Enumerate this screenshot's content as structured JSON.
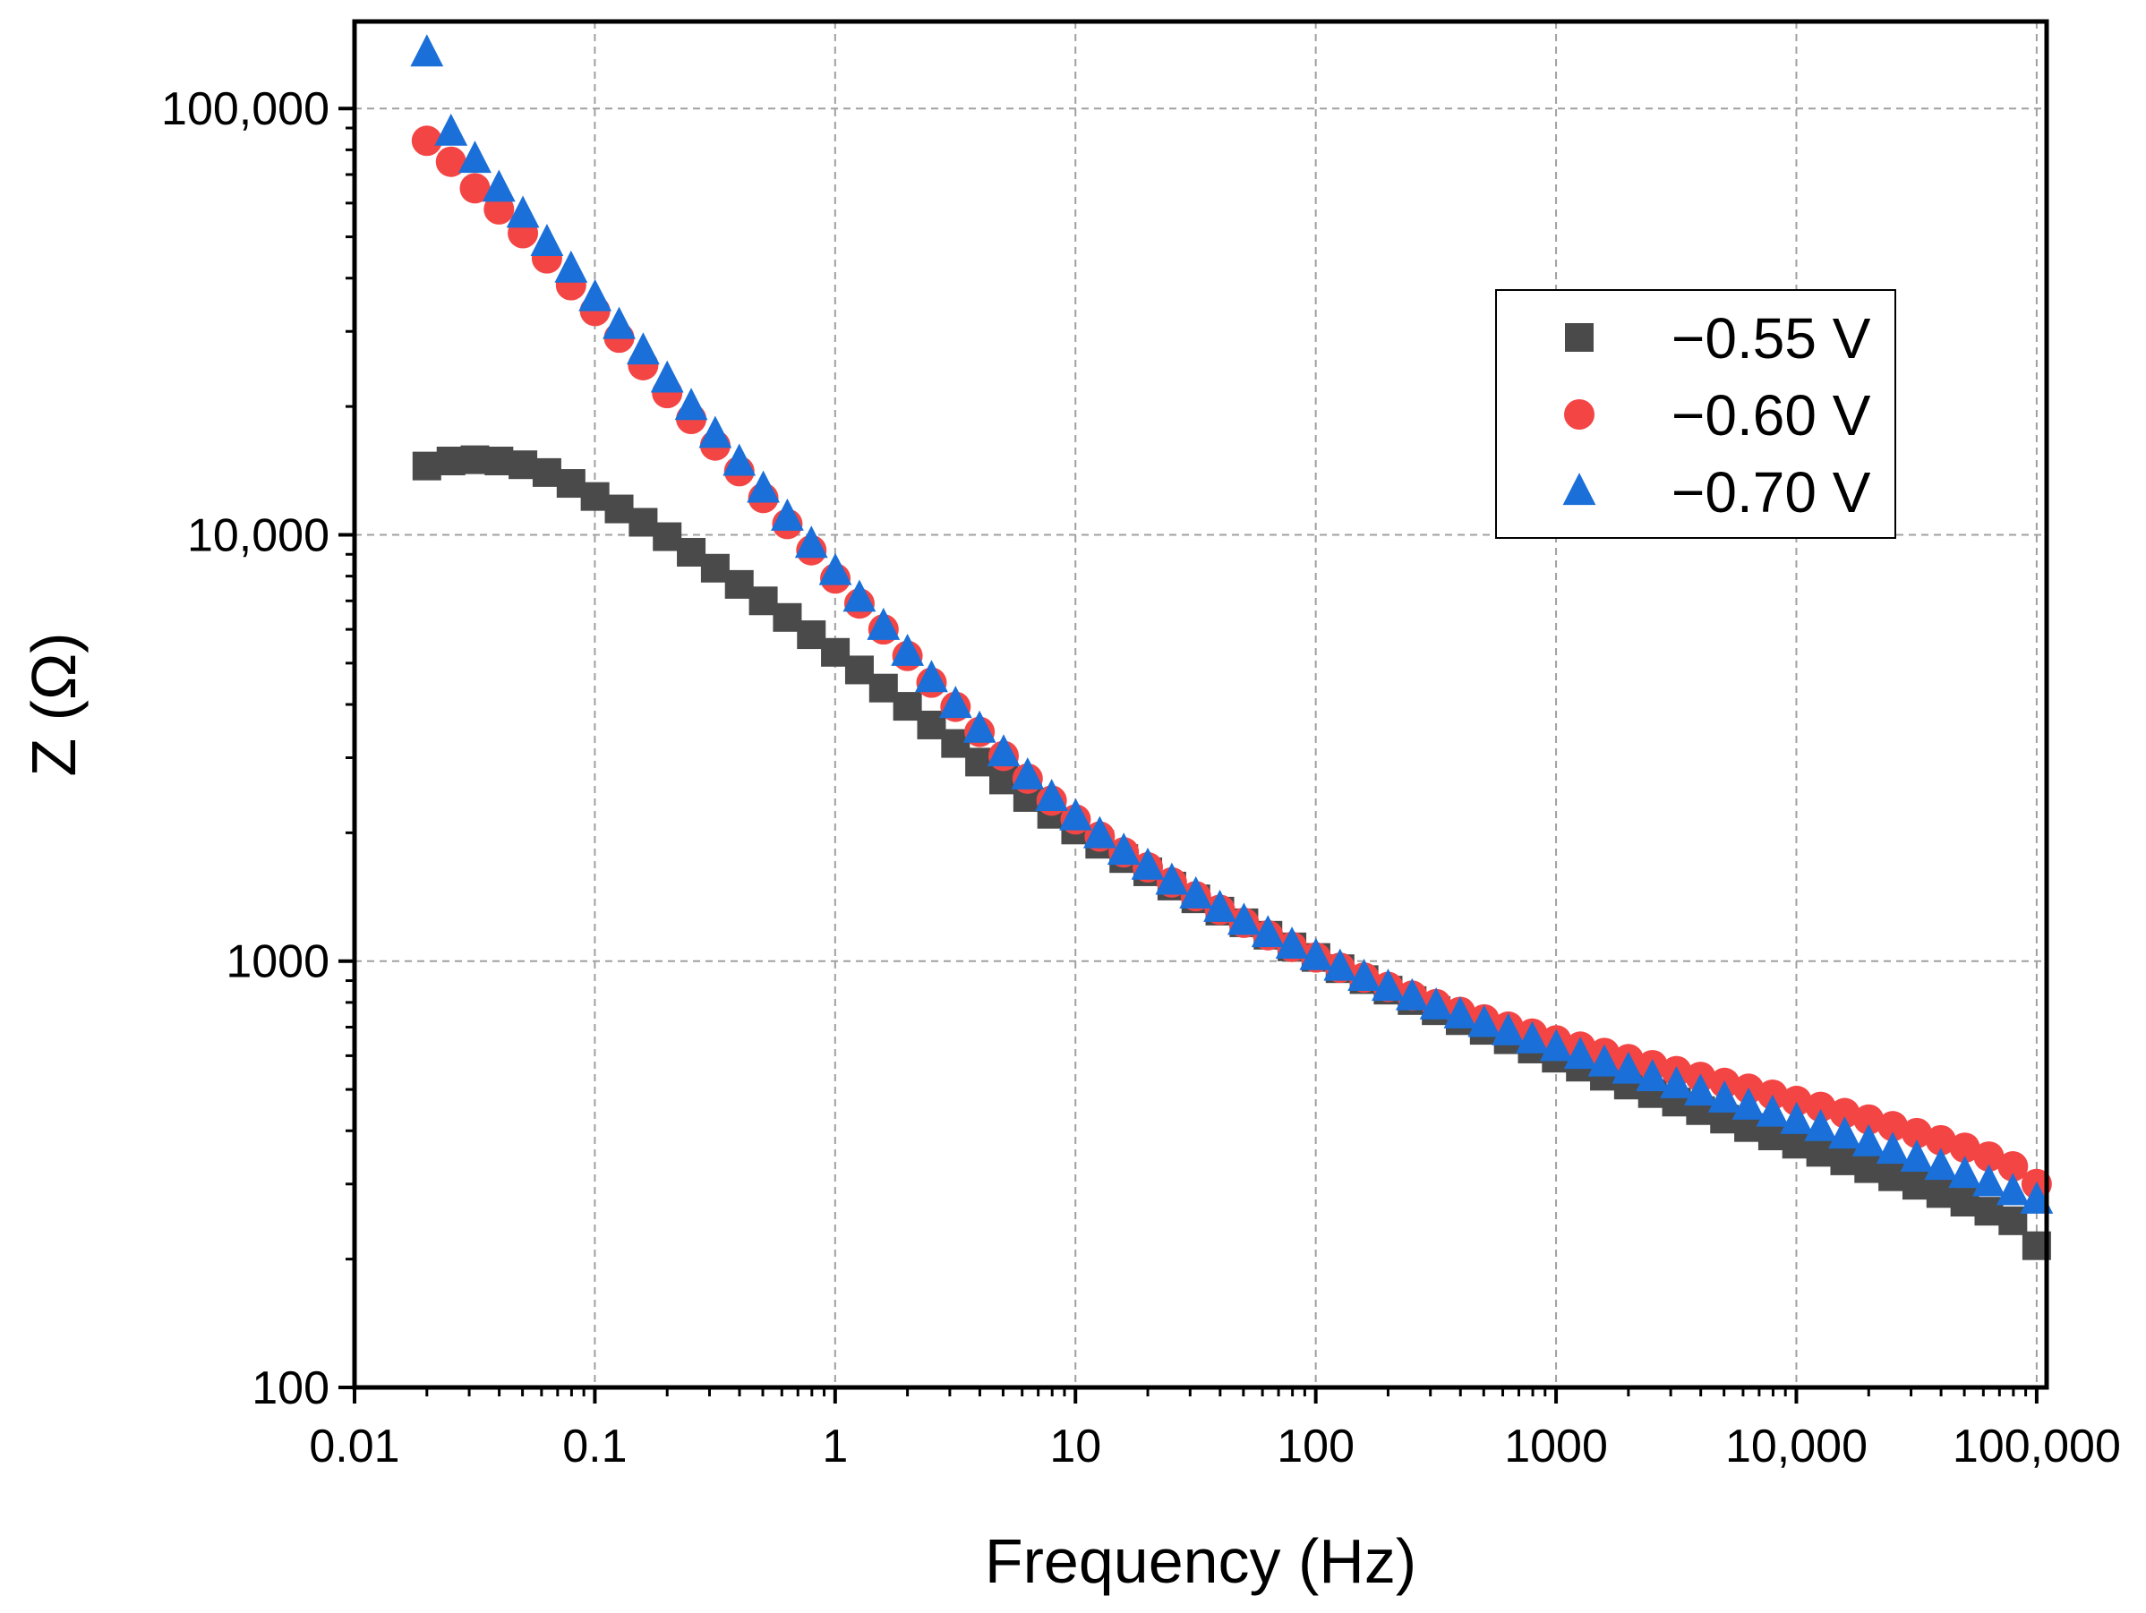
{
  "chart_data": {
    "type": "scatter",
    "xlabel": "Frequency (Hz)",
    "ylabel": "Z (Ω)",
    "x_scale": "log",
    "y_scale": "log",
    "xlim": [
      0.01,
      110000
    ],
    "ylim": [
      100,
      160000
    ],
    "grid": true,
    "legend_position": "top-right",
    "x_ticks": [
      {
        "value": 0.01,
        "label": "0.01"
      },
      {
        "value": 0.1,
        "label": "0.1"
      },
      {
        "value": 1,
        "label": "1"
      },
      {
        "value": 10,
        "label": "10"
      },
      {
        "value": 100,
        "label": "100"
      },
      {
        "value": 1000,
        "label": "1000"
      },
      {
        "value": 10000,
        "label": "10,000"
      },
      {
        "value": 100000,
        "label": "100,000"
      }
    ],
    "y_ticks": [
      {
        "value": 100,
        "label": "100"
      },
      {
        "value": 1000,
        "label": "1000"
      },
      {
        "value": 10000,
        "label": "10,000"
      },
      {
        "value": 100000,
        "label": "100,000"
      }
    ],
    "x": [
      0.02,
      0.0252,
      0.0317,
      0.0399,
      0.0502,
      0.0632,
      0.0796,
      0.1002,
      0.1262,
      0.1589,
      0.2,
      0.2518,
      0.317,
      0.399,
      0.5024,
      0.6325,
      0.7962,
      1.002,
      1.262,
      1.589,
      2.0,
      2.518,
      3.17,
      3.99,
      5.024,
      6.325,
      7.962,
      10.02,
      12.62,
      15.89,
      20.0,
      25.18,
      31.7,
      39.9,
      50.24,
      63.25,
      79.62,
      100.2,
      126.2,
      158.9,
      200.0,
      251.8,
      317.0,
      399.0,
      502.4,
      632.5,
      796.2,
      1002,
      1262,
      1589,
      2000,
      2518,
      3170,
      3990,
      5024,
      6325,
      7962,
      10020,
      12620,
      15890,
      20000,
      25180,
      31700,
      39900,
      50240,
      63250,
      79620,
      100000
    ],
    "series": [
      {
        "name": "−0.55 V",
        "marker": "square",
        "color": "#4a4a4a",
        "values": [
          14500,
          14900,
          15000,
          14900,
          14600,
          14000,
          13200,
          12300,
          11500,
          10700,
          9900,
          9100,
          8350,
          7650,
          7000,
          6400,
          5830,
          5300,
          4820,
          4370,
          3960,
          3580,
          3240,
          2930,
          2660,
          2420,
          2210,
          2030,
          1880,
          1740,
          1620,
          1500,
          1400,
          1310,
          1230,
          1150,
          1080,
          1020,
          960,
          905,
          855,
          808,
          765,
          725,
          688,
          654,
          622,
          592,
          564,
          537,
          512,
          489,
          467,
          446,
          426,
          407,
          389,
          372,
          356,
          340,
          326,
          312,
          298,
          285,
          272,
          259,
          246,
          215
        ]
      },
      {
        "name": "−0.60 V",
        "marker": "circle",
        "color": "#f44545",
        "values": [
          84000,
          75000,
          65000,
          58000,
          51000,
          44500,
          38500,
          33500,
          29000,
          25000,
          21500,
          18700,
          16200,
          14100,
          12200,
          10600,
          9200,
          7900,
          6900,
          6000,
          5200,
          4500,
          3950,
          3450,
          3030,
          2680,
          2380,
          2150,
          1960,
          1800,
          1660,
          1530,
          1420,
          1320,
          1230,
          1150,
          1080,
          1020,
          965,
          915,
          870,
          830,
          793,
          760,
          730,
          702,
          676,
          652,
          630,
          609,
          589,
          570,
          552,
          535,
          518,
          502,
          486,
          470,
          455,
          440,
          425,
          410,
          395,
          380,
          365,
          348,
          330,
          300
        ]
      },
      {
        "name": "−0.70 V",
        "marker": "triangle",
        "color": "#1a6fd8",
        "values": [
          135000,
          88000,
          76000,
          65000,
          56500,
          48500,
          42000,
          36000,
          31000,
          27000,
          23200,
          20000,
          17200,
          14800,
          12800,
          11000,
          9500,
          8200,
          7100,
          6100,
          5300,
          4600,
          4000,
          3500,
          3080,
          2720,
          2420,
          2180,
          1980,
          1810,
          1670,
          1540,
          1430,
          1330,
          1240,
          1160,
          1090,
          1025,
          968,
          916,
          868,
          825,
          785,
          748,
          714,
          683,
          654,
          627,
          601,
          577,
          555,
          533,
          513,
          493,
          475,
          457,
          440,
          423,
          407,
          391,
          375,
          360,
          345,
          330,
          316,
          302,
          288,
          275
        ]
      }
    ]
  }
}
